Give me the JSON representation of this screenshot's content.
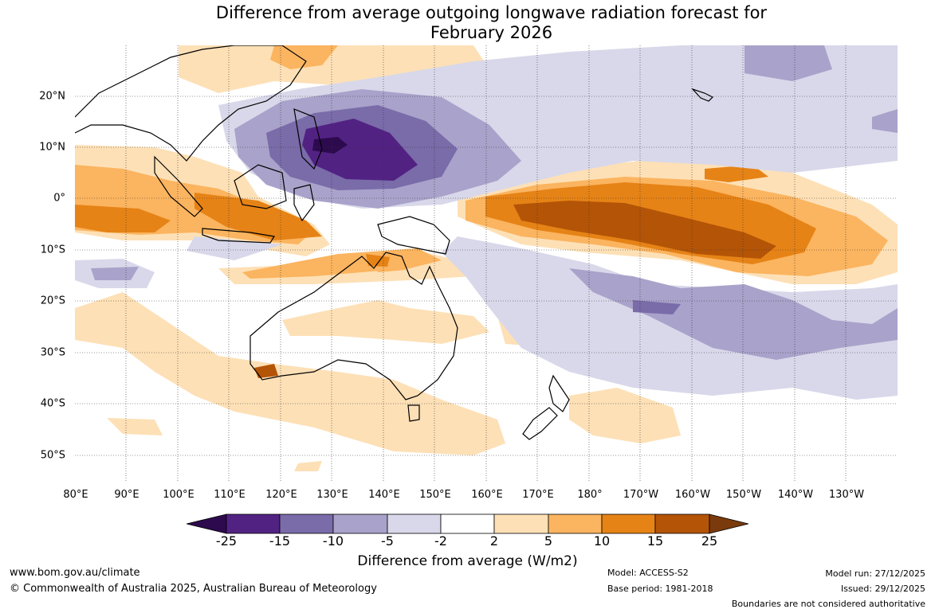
{
  "title": {
    "line1": "Difference from average outgoing longwave radiation forecast for",
    "line2": "February 2026"
  },
  "axes": {
    "lat_labels": [
      "20°N",
      "10°N",
      "0°",
      "10°S",
      "20°S",
      "30°S",
      "40°S",
      "50°S"
    ],
    "lon_labels": [
      "80°E",
      "90°E",
      "100°E",
      "110°E",
      "120°E",
      "130°E",
      "140°E",
      "150°E",
      "160°E",
      "170°E",
      "180°",
      "170°W",
      "160°W",
      "150°W",
      "140°W",
      "130°W"
    ]
  },
  "colorbar": {
    "ticks": [
      "-25",
      "-15",
      "-10",
      "-5",
      "-2",
      "2",
      "5",
      "10",
      "15",
      "25"
    ],
    "colors": {
      "lt_neg25": "#2d0a4e",
      "neg25_neg15": "#522283",
      "neg15_neg10": "#7a6ba9",
      "neg10_neg5": "#a9a2ca",
      "neg5_neg2": "#d8d8ea",
      "neg2_2": "#ffffff",
      "p2_5": "#fde0b6",
      "p5_10": "#fbb45f",
      "p10_15": "#e68316",
      "p15_25": "#b45407",
      "gt_25": "#7a3a0b"
    },
    "title": "Difference from average (W/m2)"
  },
  "footer": {
    "website": "www.bom.gov.au/climate",
    "copyright": "© Commonwealth of Australia 2025, Australian Bureau of Meteorology",
    "model": "Model: ACCESS-S2",
    "base_period": "Base period: 1981-2018",
    "model_run": "Model run: 27/12/2025",
    "issued": "Issued: 29/12/2025",
    "disclaimer": "Boundaries are not considered authoritative"
  }
}
